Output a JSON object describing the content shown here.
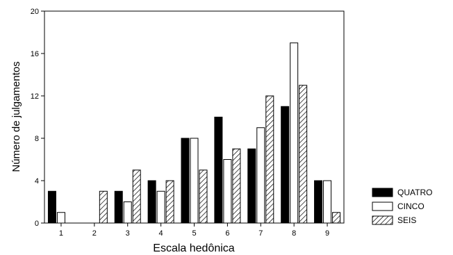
{
  "chart_data": {
    "type": "bar",
    "title": "",
    "xlabel": "Escala hedônica",
    "ylabel": "Número de julgamentos",
    "categories": [
      "1",
      "2",
      "3",
      "4",
      "5",
      "6",
      "7",
      "8",
      "9"
    ],
    "ylim": [
      0,
      20
    ],
    "yticks": [
      0,
      4,
      8,
      12,
      16,
      20
    ],
    "grid": false,
    "legend_position": "right",
    "series": [
      {
        "name": "QUATRO",
        "values": [
          3,
          0,
          3,
          4,
          8,
          10,
          7,
          11,
          4
        ],
        "fill": "solid-black"
      },
      {
        "name": "CINCO",
        "values": [
          1,
          0,
          2,
          3,
          8,
          6,
          9,
          17,
          4
        ],
        "fill": "white"
      },
      {
        "name": "SEIS",
        "values": [
          0,
          3,
          5,
          4,
          5,
          7,
          12,
          13,
          1
        ],
        "fill": "diagonal-hatch"
      }
    ]
  }
}
